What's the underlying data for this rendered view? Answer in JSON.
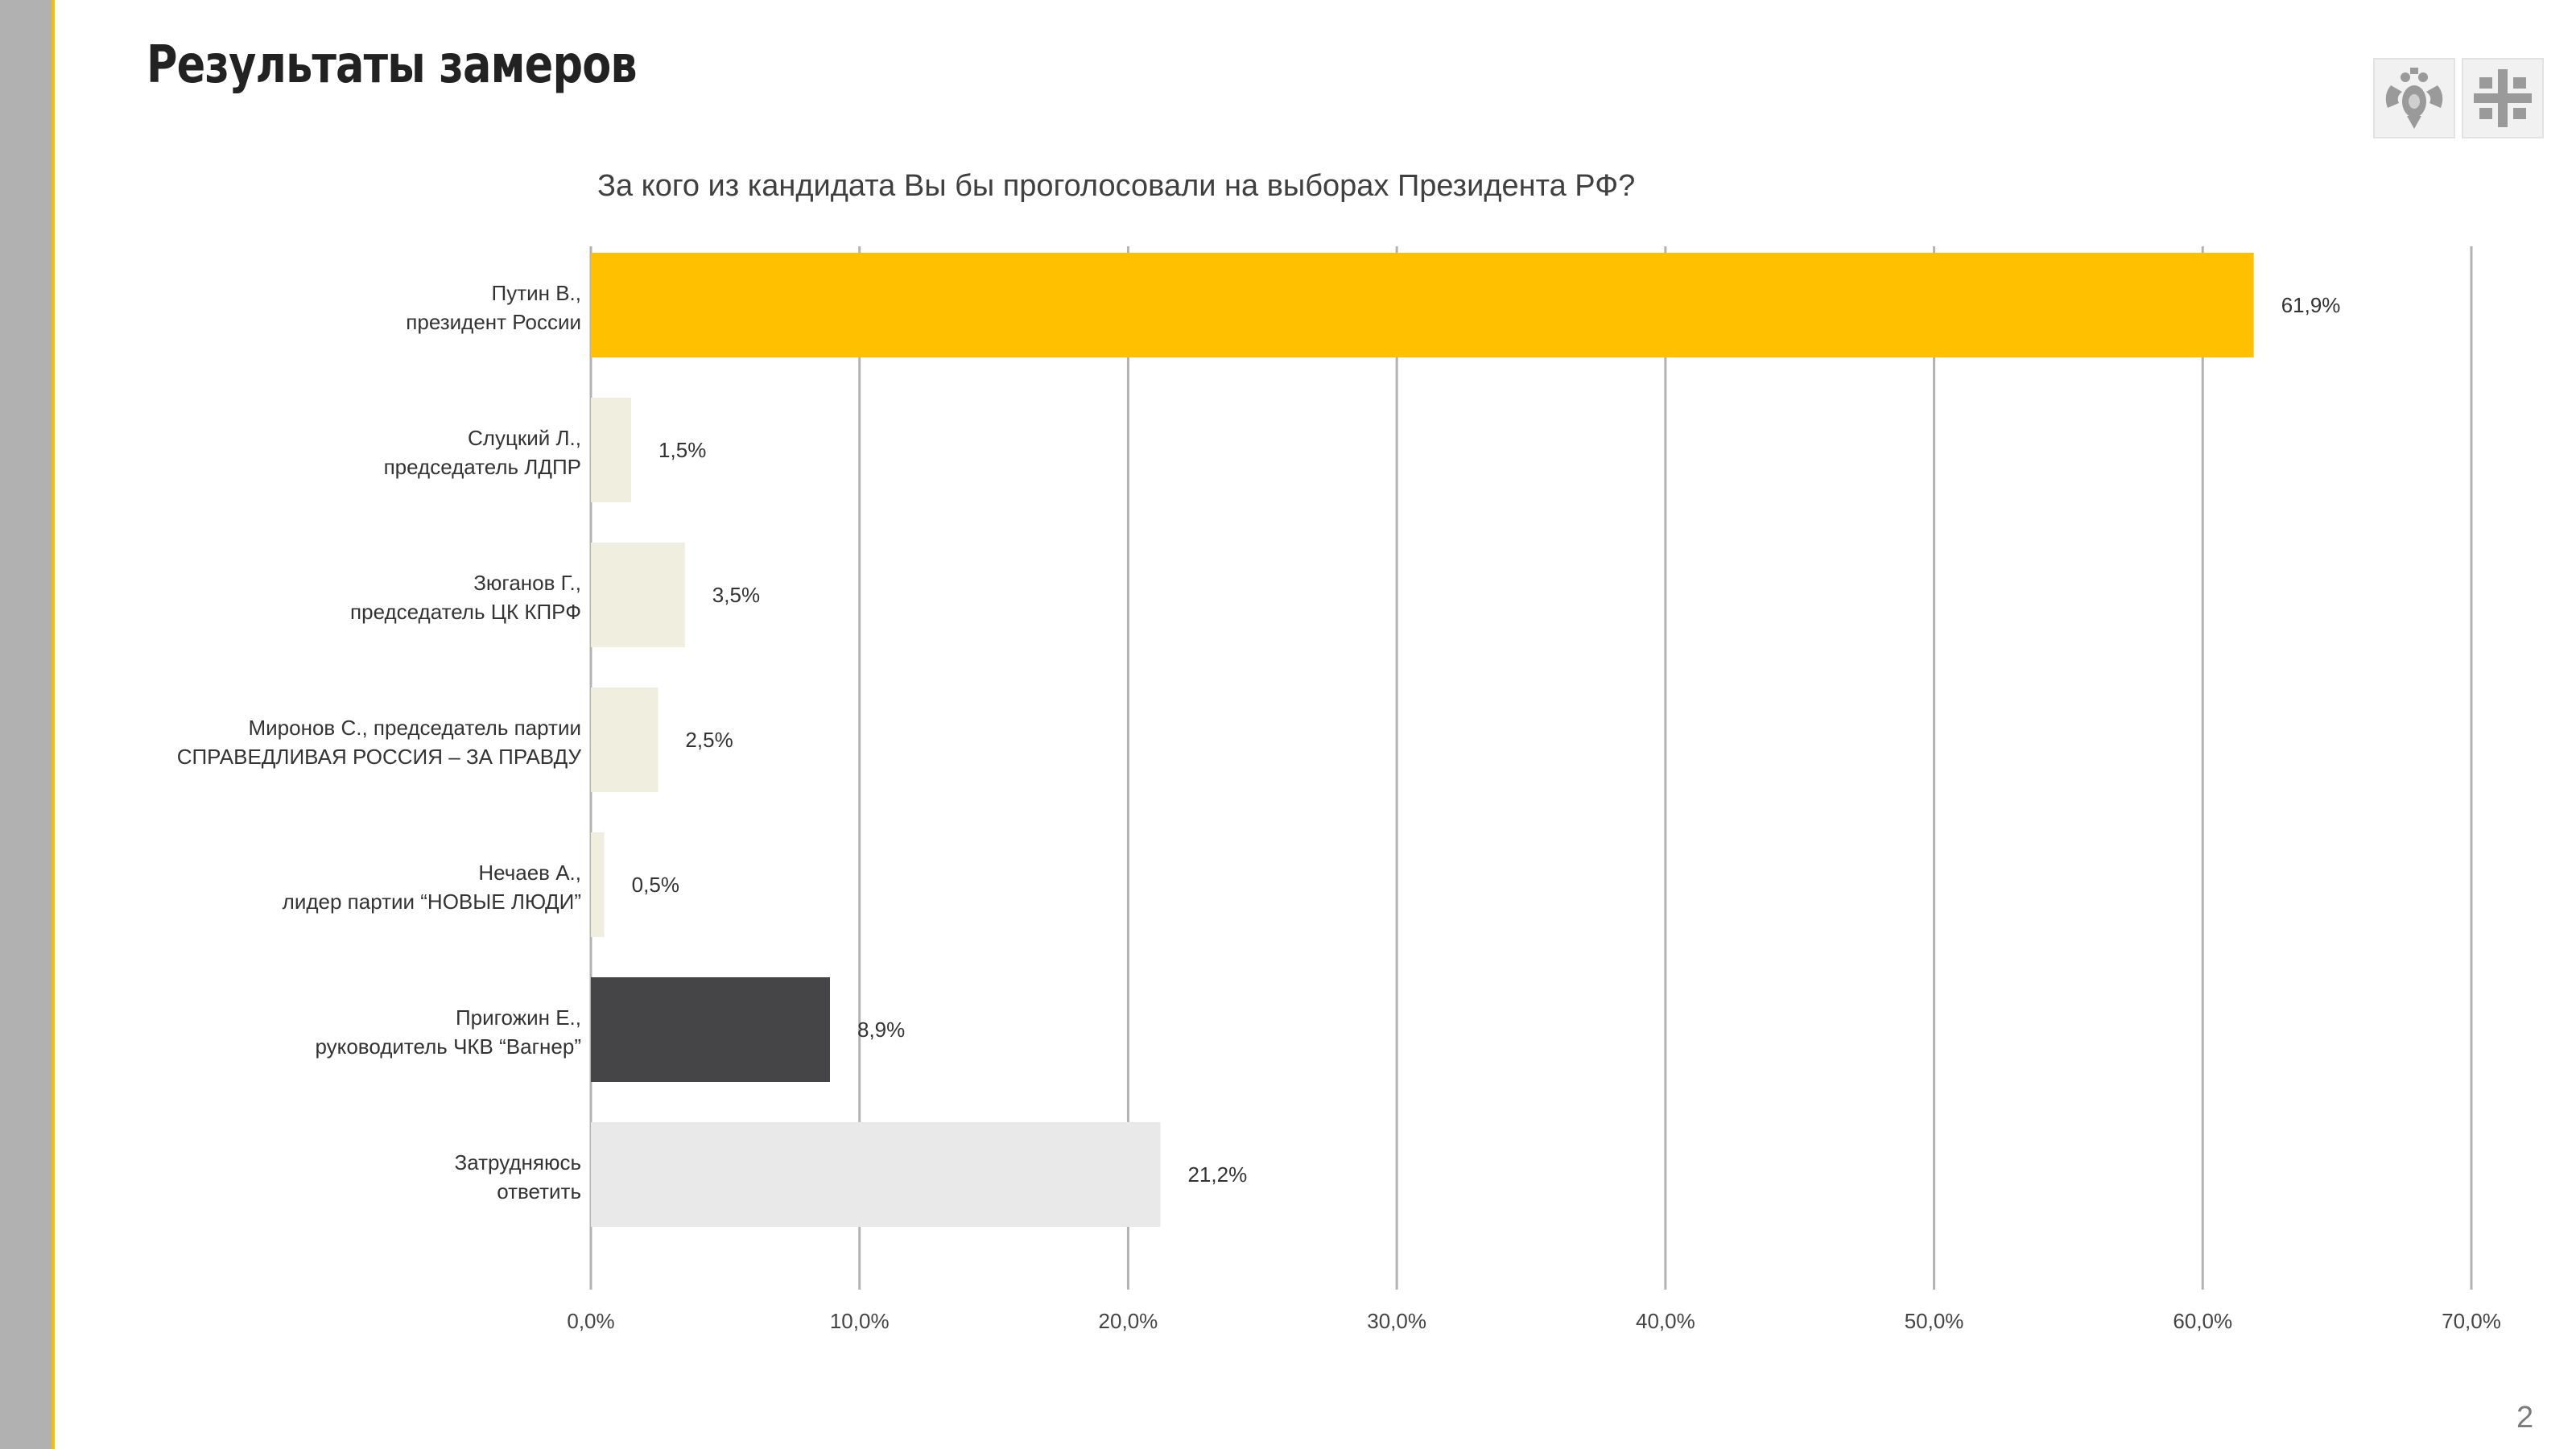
{
  "page": {
    "title": "Результаты замеров",
    "page_number": "2",
    "accent_color": "#f5c000",
    "sidebar_color": "#b1b1b1"
  },
  "logos": {
    "eagle": "double-headed-eagle-emblem",
    "cross": "grid-cross-emblem"
  },
  "chart_data": {
    "type": "bar",
    "orientation": "horizontal",
    "title": "За кого из  кандидата Вы бы проголосовали на  выборах Президента РФ?",
    "categories": [
      [
        "Путин В.,",
        "президент России"
      ],
      [
        "Слуцкий Л.,",
        "председатель ЛДПР"
      ],
      [
        "Зюганов Г.,",
        "председатель ЦК КПРФ"
      ],
      [
        "Миронов С.,  председатель партии",
        "СПРАВЕДЛИВАЯ РОССИЯ – ЗА ПРАВДУ"
      ],
      [
        "Нечаев А.,",
        "лидер партии “НОВЫЕ ЛЮДИ”"
      ],
      [
        "Пригожин Е.,",
        "руководитель ЧКВ “Вагнер”"
      ],
      [
        "Затрудняюсь",
        "ответить"
      ]
    ],
    "values": [
      61.9,
      1.5,
      3.5,
      2.5,
      0.5,
      8.9,
      21.2
    ],
    "value_labels": [
      "61,9%",
      "1,5%",
      "3,5%",
      "2,5%",
      "0,5%",
      "8,9%",
      "21,2%"
    ],
    "colors": [
      "#ffc000",
      "#f0efdf",
      "#f0efdf",
      "#f0efdf",
      "#f0efdf",
      "#454547",
      "#e9e9ea"
    ],
    "xlim": [
      0,
      70
    ],
    "x_ticks": [
      0,
      10,
      20,
      30,
      40,
      50,
      60,
      70
    ],
    "x_tick_labels": [
      "0,0%",
      "10,0%",
      "20,0%",
      "30,0%",
      "40,0%",
      "50,0%",
      "60,0%",
      "70,0%"
    ],
    "grid": true,
    "legend": "none"
  }
}
